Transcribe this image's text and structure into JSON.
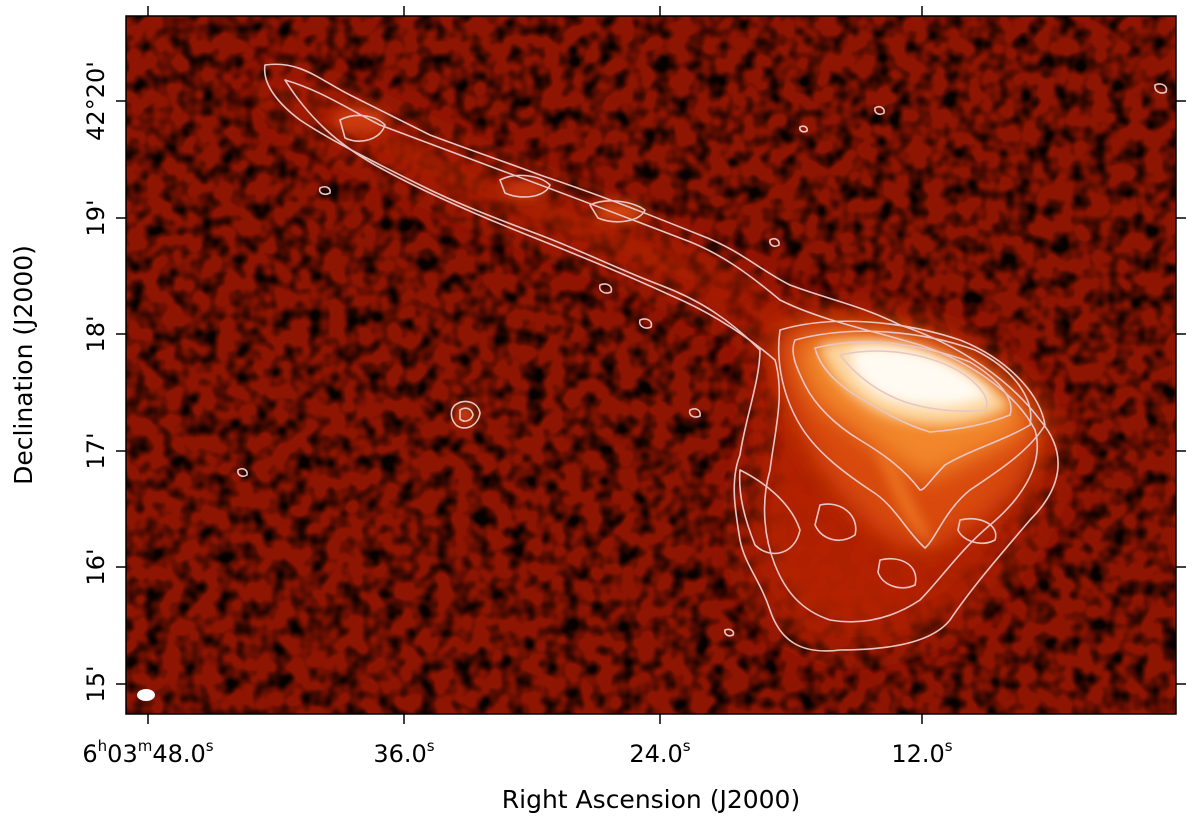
{
  "figure": {
    "xlabel": "Right Ascension (J2000)",
    "ylabel": "Declination (J2000)",
    "colormap": "hot",
    "contour_color": "#e8c6c6",
    "beam_color": "#ffffff"
  },
  "x_ticks": [
    {
      "main": "6",
      "sup1": "h",
      "mid": "03",
      "sup2": "m",
      "tail": "48.0",
      "sup3": "s"
    },
    {
      "main": "36.0",
      "sup3": "s"
    },
    {
      "main": "24.0",
      "sup3": "s"
    },
    {
      "main": "12.0",
      "sup3": "s"
    }
  ],
  "y_ticks": [
    {
      "label": "42°20'"
    },
    {
      "label": "19'"
    },
    {
      "label": "18'"
    },
    {
      "label": "17'"
    },
    {
      "label": "16'"
    },
    {
      "label": "15'"
    }
  ]
}
